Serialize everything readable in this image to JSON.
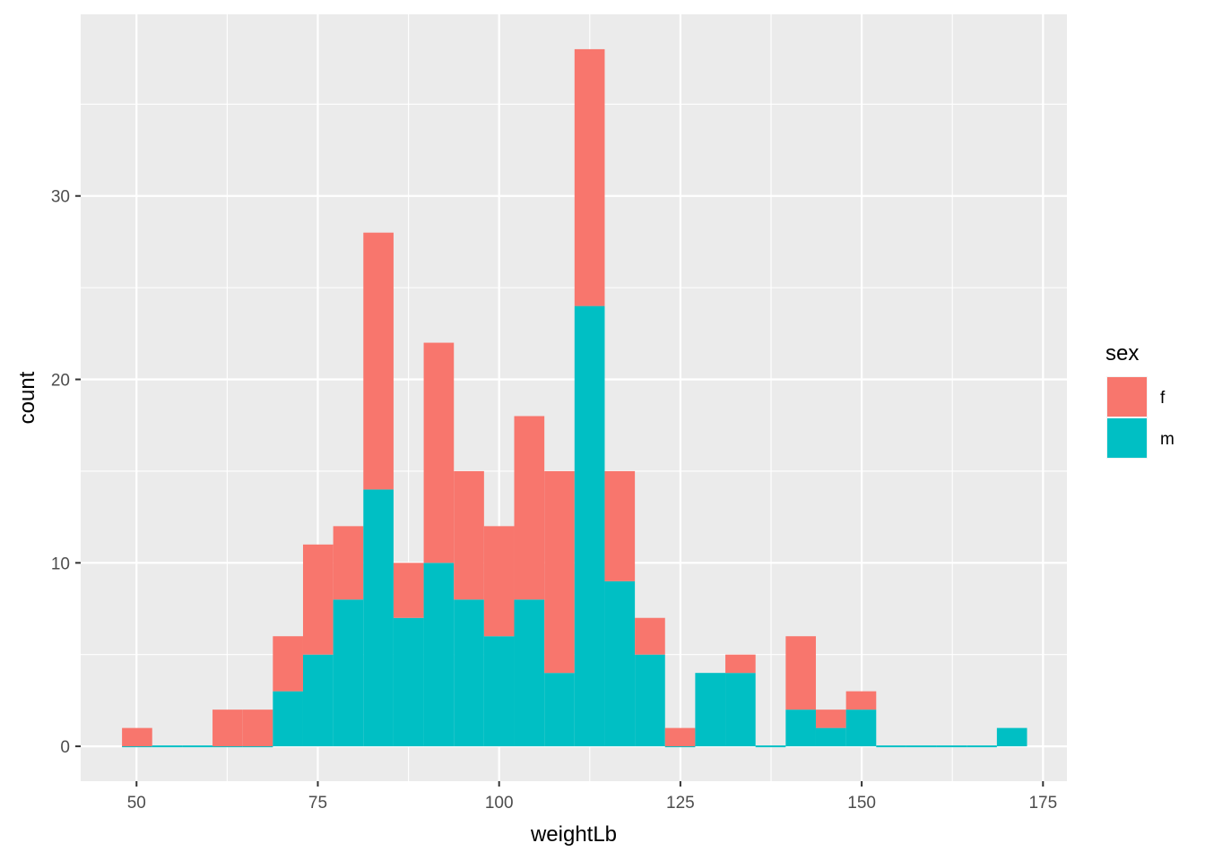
{
  "chart_data": {
    "type": "bar",
    "stacked": true,
    "xlabel": "weightLb",
    "ylabel": "count",
    "xlim": [
      42.3,
      178.3
    ],
    "ylim": [
      -1.9,
      39.9
    ],
    "x_ticks": [
      50,
      75,
      100,
      125,
      150,
      175
    ],
    "y_ticks": [
      0,
      10,
      20,
      30
    ],
    "grid": true,
    "legend_title": "sex",
    "legend_position": "right",
    "bin_edges": [
      48.0,
      52.16,
      56.32,
      60.48,
      64.64,
      68.8,
      72.96,
      77.12,
      81.28,
      85.44,
      89.6,
      93.76,
      97.92,
      102.08,
      106.24,
      110.4,
      114.56,
      118.72,
      122.88,
      127.04,
      131.2,
      135.36,
      139.52,
      143.68,
      147.84,
      152.0,
      156.16,
      160.32,
      164.48,
      168.64,
      172.8
    ],
    "series": [
      {
        "name": "f",
        "color": "#F8766D",
        "values": [
          1,
          0,
          0,
          2,
          2,
          3,
          6,
          4,
          14,
          3,
          12,
          7,
          6,
          10,
          11,
          14,
          6,
          2,
          1,
          0,
          1,
          0,
          4,
          1,
          1,
          0,
          0,
          0,
          0,
          0
        ]
      },
      {
        "name": "m",
        "color": "#00BFC4",
        "values": [
          0,
          0,
          0,
          0,
          0,
          3,
          5,
          8,
          14,
          7,
          10,
          8,
          6,
          8,
          4,
          24,
          9,
          5,
          0,
          4,
          4,
          0,
          2,
          1,
          2,
          0,
          0,
          0,
          0,
          1
        ]
      }
    ]
  }
}
